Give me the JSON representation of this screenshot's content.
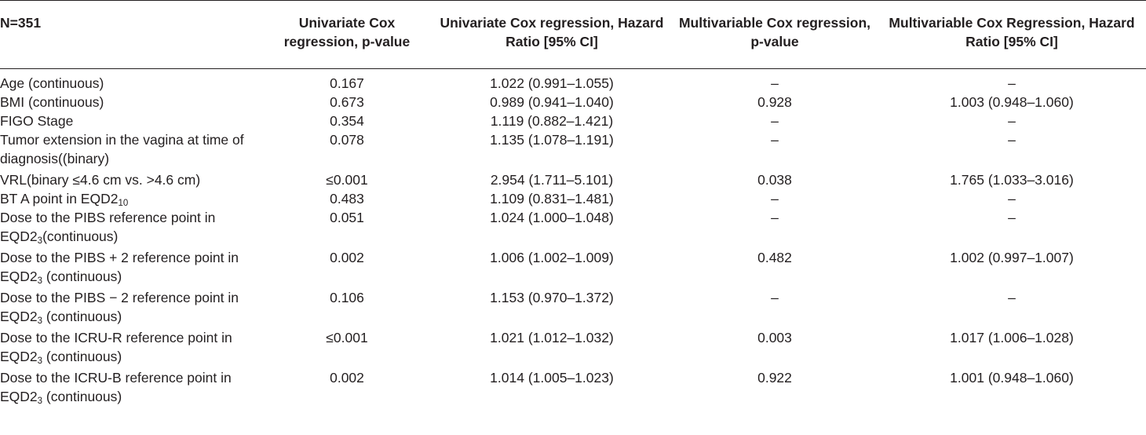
{
  "headers": [
    "N=351",
    "Univariate Cox regression, p-value",
    "Univariate Cox regression, Hazard Ratio [95% CI]",
    "Multivariable Cox regression, p-value",
    "Multivariable Cox Regression, Hazard Ratio [95% CI]"
  ],
  "rows": [
    {
      "label": "Age (continuous)",
      "uv_p": "0.167",
      "uv_hr": "1.022 (0.991–1.055)",
      "mv_p": "–",
      "mv_hr": "–"
    },
    {
      "label": "BMI (continuous)",
      "uv_p": "0.673",
      "uv_hr": "0.989 (0.941–1.040)",
      "mv_p": "0.928",
      "mv_hr": "1.003 (0.948–1.060)"
    },
    {
      "label": "FIGO Stage",
      "uv_p": "0.354",
      "uv_hr": "1.119 (0.882–1.421)",
      "mv_p": "–",
      "mv_hr": "–"
    },
    {
      "label": "Tumor extension in the vagina at time of diagnosis((binary)",
      "uv_p": "0.078",
      "uv_hr": "1.135 (1.078–1.191)",
      "mv_p": "–",
      "mv_hr": "–"
    },
    {
      "label": "VRL(binary ≤4.6 cm vs. >4.6 cm)",
      "uv_p": "≤0.001",
      "uv_hr": "2.954 (1.711–5.101)",
      "mv_p": "0.038",
      "mv_hr": "1.765 (1.033–3.016)"
    },
    {
      "label_pre": "BT A point in EQD2",
      "label_sub": "10",
      "label_post": "",
      "uv_p": "0.483",
      "uv_hr": "1.109 (0.831–1.481)",
      "mv_p": "–",
      "mv_hr": "–"
    },
    {
      "label_pre": "Dose to the PIBS reference point in EQD2",
      "label_sub": "3",
      "label_post": "(continuous)",
      "uv_p": "0.051",
      "uv_hr": "1.024 (1.000–1.048)",
      "mv_p": "–",
      "mv_hr": "–"
    },
    {
      "label_pre": "Dose to the PIBS + 2 reference point in EQD2",
      "label_sub": "3",
      "label_post": " (continuous)",
      "uv_p": "0.002",
      "uv_hr": "1.006 (1.002–1.009)",
      "mv_p": "0.482",
      "mv_hr": "1.002 (0.997–1.007)"
    },
    {
      "label_pre": "Dose to the PIBS − 2 reference point in EQD2",
      "label_sub": "3",
      "label_post": " (continuous)",
      "uv_p": "0.106",
      "uv_hr": "1.153 (0.970–1.372)",
      "mv_p": "–",
      "mv_hr": "–"
    },
    {
      "label_pre": "Dose to the ICRU-R reference point in EQD2",
      "label_sub": "3",
      "label_post": " (continuous)",
      "uv_p": "≤0.001",
      "uv_hr": "1.021 (1.012–1.032)",
      "mv_p": "0.003",
      "mv_hr": "1.017 (1.006–1.028)"
    },
    {
      "label_pre": "Dose to the ICRU-B reference point in EQD2",
      "label_sub": "3",
      "label_post": " (continuous)",
      "uv_p": "0.002",
      "uv_hr": "1.014 (1.005–1.023)",
      "mv_p": "0.922",
      "mv_hr": "1.001 (0.948–1.060)"
    }
  ]
}
